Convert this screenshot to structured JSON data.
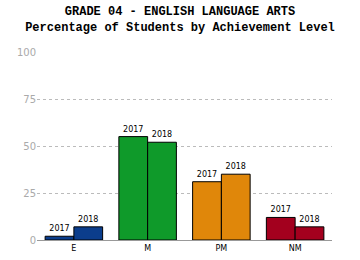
{
  "chart_data": {
    "type": "bar",
    "title": "GRADE 04 - ENGLISH LANGUAGE ARTS",
    "subtitle": "Percentage of Students by Achievement Level",
    "categories": [
      "E",
      "M",
      "PM",
      "NM"
    ],
    "series": [
      {
        "name": "2017",
        "colors": [
          "#0b3d8c",
          "#0f9a2a",
          "#e0870a",
          "#a3001e"
        ],
        "values": [
          2,
          55,
          31,
          12
        ]
      },
      {
        "name": "2018",
        "colors": [
          "#0b3d8c",
          "#0f9a2a",
          "#e0870a",
          "#a3001e"
        ],
        "values": [
          7,
          52,
          35,
          7
        ]
      }
    ],
    "ylim": [
      0,
      100
    ],
    "yticks": [
      0,
      25,
      50,
      75,
      100
    ],
    "grid": true
  }
}
